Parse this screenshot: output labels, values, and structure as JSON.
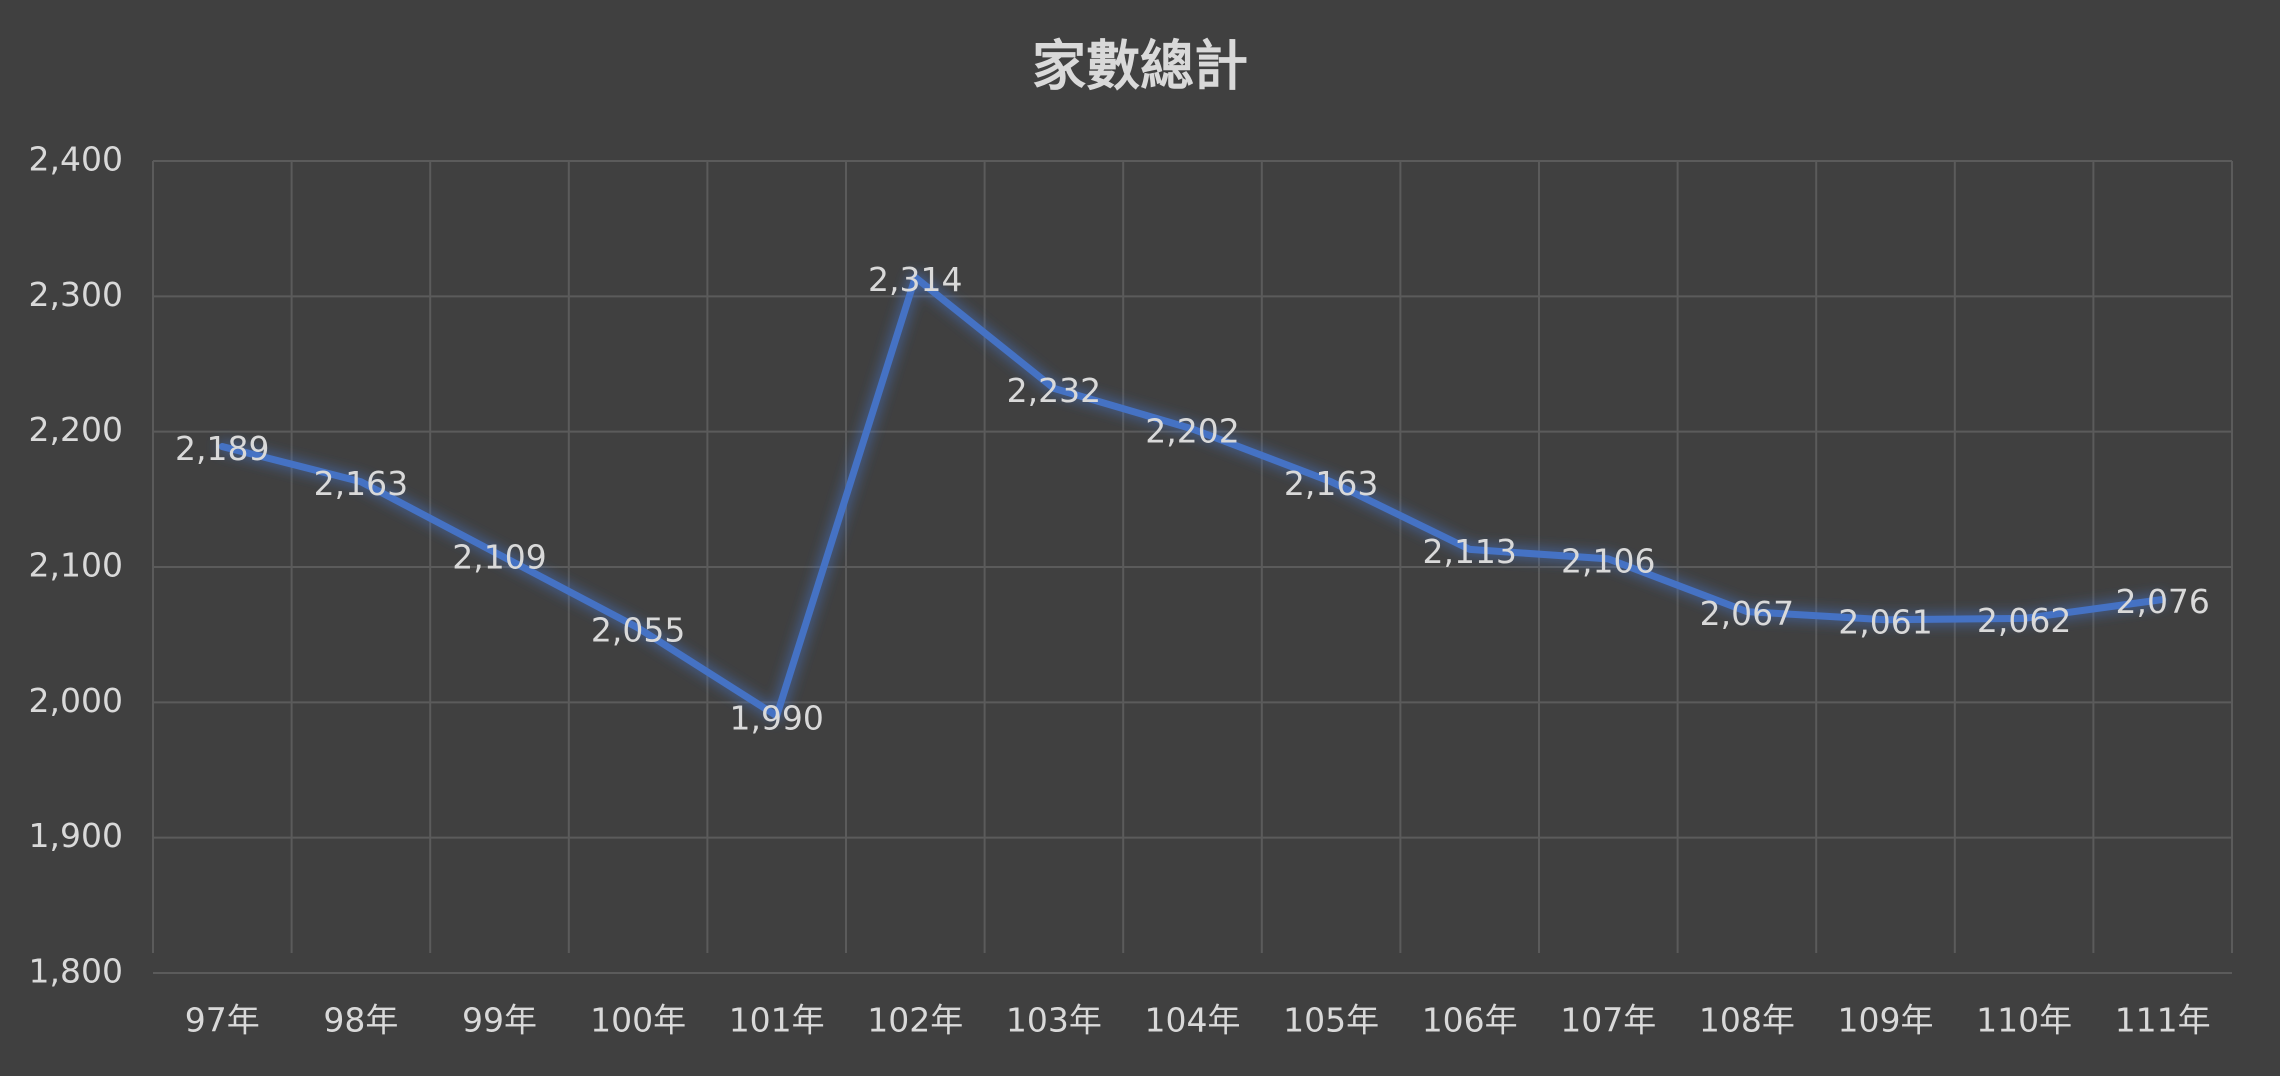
{
  "chart_data": {
    "type": "line",
    "title": "家數總計",
    "categories": [
      "97年",
      "98年",
      "99年",
      "100年",
      "101年",
      "102年",
      "103年",
      "104年",
      "105年",
      "106年",
      "107年",
      "108年",
      "109年",
      "110年",
      "111年"
    ],
    "series": [
      {
        "color": "#4472c4",
        "values": [
          2189,
          2163,
          2109,
          2055,
          1990,
          2314,
          2232,
          2202,
          2163,
          2113,
          2106,
          2067,
          2061,
          2062,
          2076
        ],
        "value_labels": [
          "2,189",
          "2,163",
          "2,109",
          "2,055",
          "1,990",
          "2,314",
          "2,232",
          "2,202",
          "2,163",
          "2,113",
          "2,106",
          "2,067",
          "2,061",
          "2,062",
          "2,076"
        ]
      }
    ],
    "ylim": [
      1800,
      2400
    ],
    "yticks": [
      {
        "value": 1800,
        "label": "1,800"
      },
      {
        "value": 1900,
        "label": "1,900"
      },
      {
        "value": 2000,
        "label": "2,000"
      },
      {
        "value": 2100,
        "label": "2,100"
      },
      {
        "value": 2200,
        "label": "2,200"
      },
      {
        "value": 2300,
        "label": "2,300"
      },
      {
        "value": 2400,
        "label": "2,400"
      }
    ],
    "grid": true
  }
}
